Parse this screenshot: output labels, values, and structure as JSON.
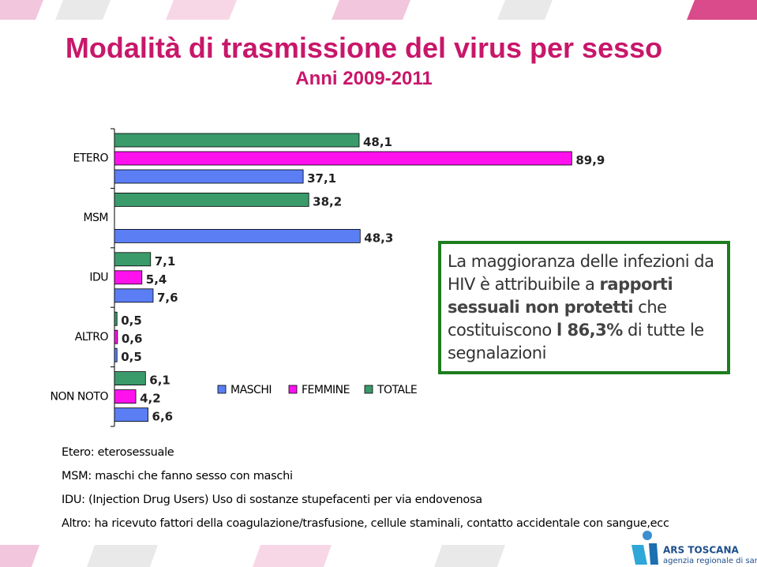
{
  "title": "Modalità di trasmissione del virus per sesso",
  "subtitle": "Anni 2009-2011",
  "chart_data": {
    "type": "bar",
    "orientation": "horizontal",
    "categories": [
      "ETERO",
      "MSM",
      "IDU",
      "ALTRO",
      "NON NOTO"
    ],
    "xlim": [
      0,
      90
    ],
    "series": [
      {
        "name": "MASCHI",
        "color": "#5b7ef5",
        "values": [
          37.1,
          48.3,
          7.6,
          0.5,
          6.6
        ],
        "value_labels": [
          "37,1",
          "48,3",
          "7,6",
          "0,5",
          "6,6"
        ]
      },
      {
        "name": "FEMMINE",
        "color": "#ff11ee",
        "values": [
          89.9,
          null,
          5.4,
          0.6,
          4.2
        ],
        "value_labels": [
          "89,9",
          null,
          "5,4",
          "0,6",
          "4,2"
        ]
      },
      {
        "name": "TOTALE",
        "color": "#3a9a6a",
        "values": [
          48.1,
          38.2,
          7.1,
          0.5,
          6.1
        ],
        "value_labels": [
          "48,1",
          "38,2",
          "7,1",
          "0,5",
          "6,1"
        ]
      }
    ]
  },
  "callout": [
    "La maggioranza delle infezioni da HIV è attribuibile a ",
    "rapporti sessuali non protetti",
    " che costituiscono ",
    "l 86,3%",
    " di tutte le segnalazioni"
  ],
  "notes": [
    "Etero: eterosessuale",
    "MSM: maschi che fanno sesso con maschi",
    "IDU: (Injection Drug Users) Uso di sostanze stupefacenti per via endovenosa",
    "Altro: ha ricevuto fattori della coagulazione/trasfusione, cellule staminali, contatto accidentale con sangue,ecc"
  ],
  "logo": {
    "name": "ARS TOSCANA",
    "tagline": "agenzia regionale di sanità"
  }
}
